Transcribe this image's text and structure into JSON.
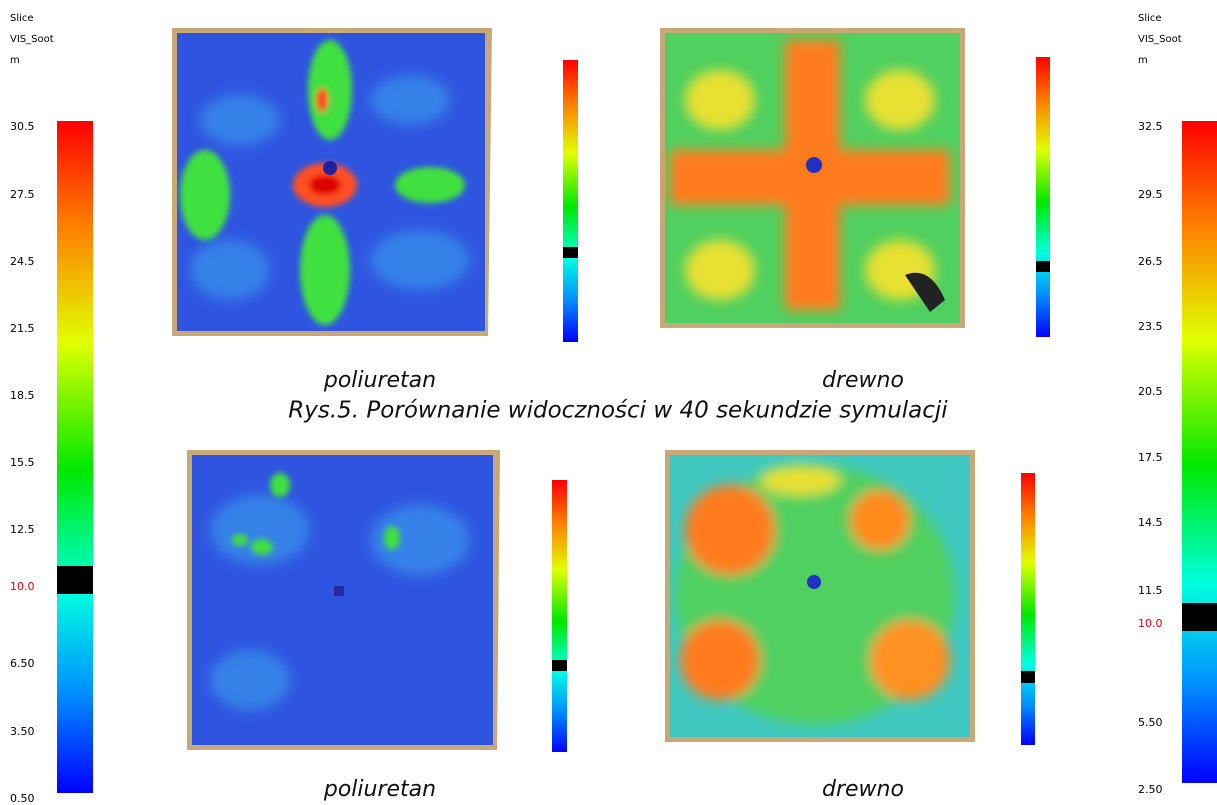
{
  "legend_left": {
    "title": "Slice",
    "quantity": "VIS_Soot",
    "unit": "m",
    "ticks": [
      "30.5",
      "27.5",
      "24.5",
      "21.5",
      "18.5",
      "15.5",
      "12.5",
      "10.0",
      "6.50",
      "3.50",
      "0.50"
    ]
  },
  "legend_right": {
    "title": "Slice",
    "quantity": "VIS_Soot",
    "unit": "m",
    "ticks": [
      "32.5",
      "29.5",
      "26.5",
      "23.5",
      "20.5",
      "17.5",
      "14.5",
      "11.5",
      "10.0",
      "5.50",
      "2.50"
    ]
  },
  "panels": [
    {
      "label": "poliuretan"
    },
    {
      "label": "drewno"
    },
    {
      "label": "poliuretan"
    },
    {
      "label": "drewno"
    }
  ],
  "figure_caption": "Rys.5. Porównanie widoczności w 40 sekundzie symulacji"
}
